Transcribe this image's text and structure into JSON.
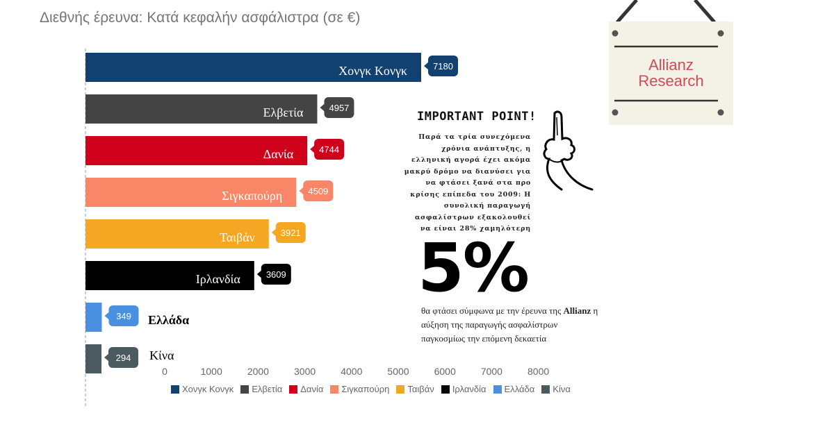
{
  "chart_data": {
    "type": "bar",
    "orientation": "horizontal",
    "title": "Διεθνής έρευνα: Κατά κεφαλήν ασφάλιστρα (σε €)",
    "categories": [
      "Χονγκ Κονγκ",
      "Ελβετία",
      "Δανία",
      "Σιγκαπούρη",
      "Ταιβάν",
      "Ιρλανδία",
      "Ελλάδα",
      "Κίνα"
    ],
    "values": [
      7180,
      4957,
      4744,
      4509,
      3921,
      3609,
      349,
      294
    ],
    "colors": [
      "#12406f",
      "#444444",
      "#d0021b",
      "#f98767",
      "#f5a623",
      "#000000",
      "#4a90e2",
      "#4a5a5f"
    ],
    "x_ticks": [
      "0",
      "1000",
      "2000",
      "3000",
      "4000",
      "5000",
      "6000",
      "7000",
      "8000"
    ],
    "xlim": [
      0,
      8000
    ],
    "grid": false,
    "legend_position": "bottom"
  },
  "note": {
    "title": "IMPORTANT POINT!",
    "body": "Παρά τα τρία συνεχόμενα χρόνια ανάπτυξης, η ελληνική αγορά έχει ακόμα μακρύ δρόμο να διανύσει για να φτάσει ξανά στα προ κρίσης επίπεδα του 2009: Η συνολική παραγωγή ασφαλίστρων εξακολουθεί να είναι 28% χαμηλότερη",
    "icon": "pointing-finger-icon"
  },
  "highlight": {
    "value": "5%",
    "text_before": "θα φτάσει σύμφωνα με την έρευνα της ",
    "brand": "Allianz",
    "text_after": " η αύξηση της παραγωγής ασφαλίστρων παγκοσμίως την επόμενη δεκαετία"
  },
  "sign": {
    "line1": "Allianz",
    "line2": "Research",
    "text_color": "#d04b56",
    "icon": "hanging-sign-icon"
  }
}
